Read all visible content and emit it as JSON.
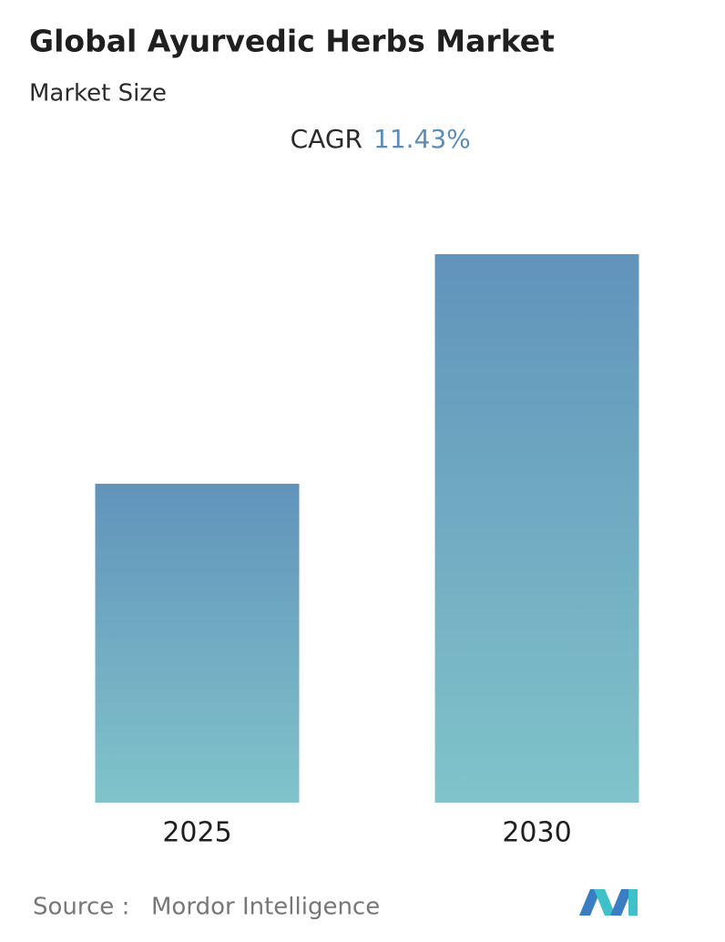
{
  "chart_data": {
    "type": "bar",
    "title": "Global Ayurvedic Herbs Market",
    "subtitle": "Market Size",
    "cagr_label": "CAGR",
    "cagr_value": "11.43%",
    "categories": [
      "2025",
      "2030"
    ],
    "values": [
      1,
      1.72
    ],
    "source_label": "Source :",
    "source": "Mordor Intelligence"
  }
}
